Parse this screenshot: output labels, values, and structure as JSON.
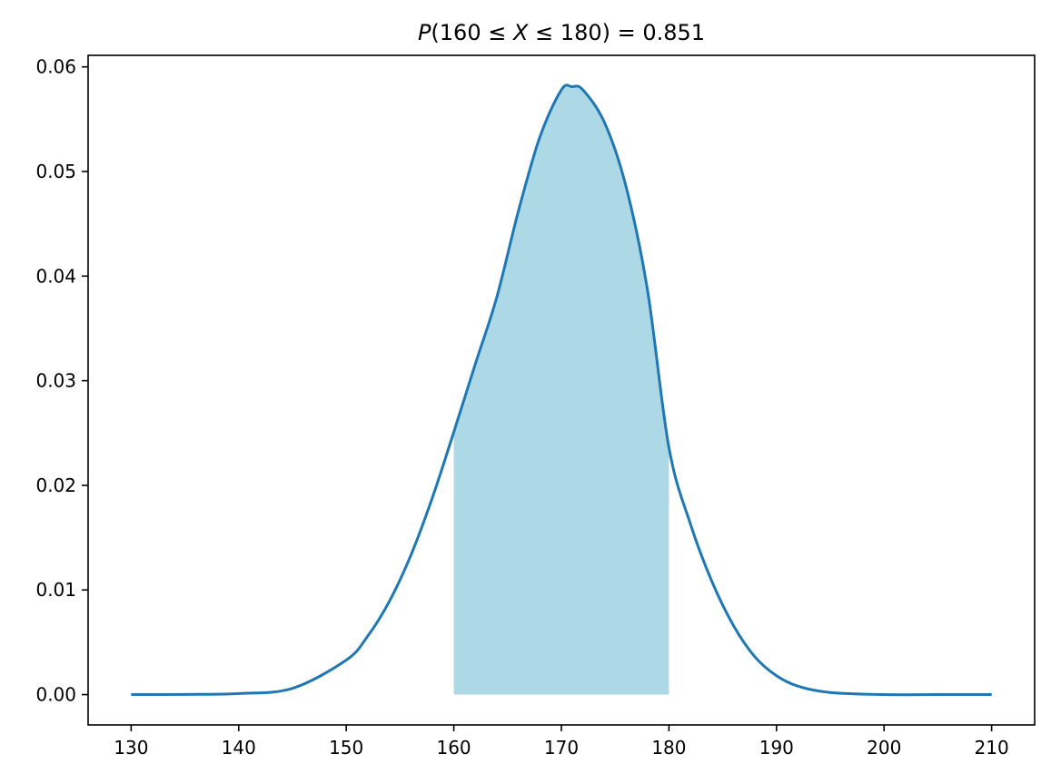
{
  "chart_data": {
    "type": "area",
    "title": {
      "prefix": "P",
      "open": "(160",
      "op1": " ≤ ",
      "var": "X",
      "op2": " ≤ ",
      "close": "180) = 0.851"
    },
    "xlabel": "",
    "ylabel": "",
    "xlim": [
      126,
      214
    ],
    "ylim": [
      -0.0029,
      0.0611
    ],
    "xticks": [
      130,
      140,
      150,
      160,
      170,
      180,
      190,
      200,
      210
    ],
    "xtick_labels": [
      "130",
      "140",
      "150",
      "160",
      "170",
      "180",
      "190",
      "200",
      "210"
    ],
    "yticks": [
      0.0,
      0.01,
      0.02,
      0.03,
      0.04,
      0.05,
      0.06
    ],
    "ytick_labels": [
      "0.00",
      "0.01",
      "0.02",
      "0.03",
      "0.04",
      "0.05",
      "0.06"
    ],
    "grid": false,
    "legend": "none",
    "series": [
      {
        "kind": "line",
        "x": [
          130,
          135,
          140,
          145,
          150,
          152,
          154,
          156,
          158,
          160,
          162,
          164,
          166,
          168,
          170,
          171,
          172,
          174,
          176,
          178,
          180,
          182,
          184,
          186,
          188,
          190,
          192,
          195,
          200,
          205,
          210
        ],
        "y": [
          0.0,
          2e-05,
          0.0001,
          0.0006,
          0.0033,
          0.0056,
          0.0089,
          0.0133,
          0.0188,
          0.0251,
          0.0316,
          0.038,
          0.0462,
          0.0533,
          0.0578,
          0.0581,
          0.0578,
          0.0547,
          0.0486,
          0.0387,
          0.0236,
          0.0163,
          0.0108,
          0.0066,
          0.0036,
          0.0018,
          0.0008,
          0.0002,
          0.0,
          0.0,
          0.0
        ],
        "color": "#1f77b4"
      },
      {
        "kind": "fill_between",
        "x_from": 160,
        "x_to": 180,
        "probability": 0.851,
        "color": "#add8e6"
      }
    ]
  }
}
